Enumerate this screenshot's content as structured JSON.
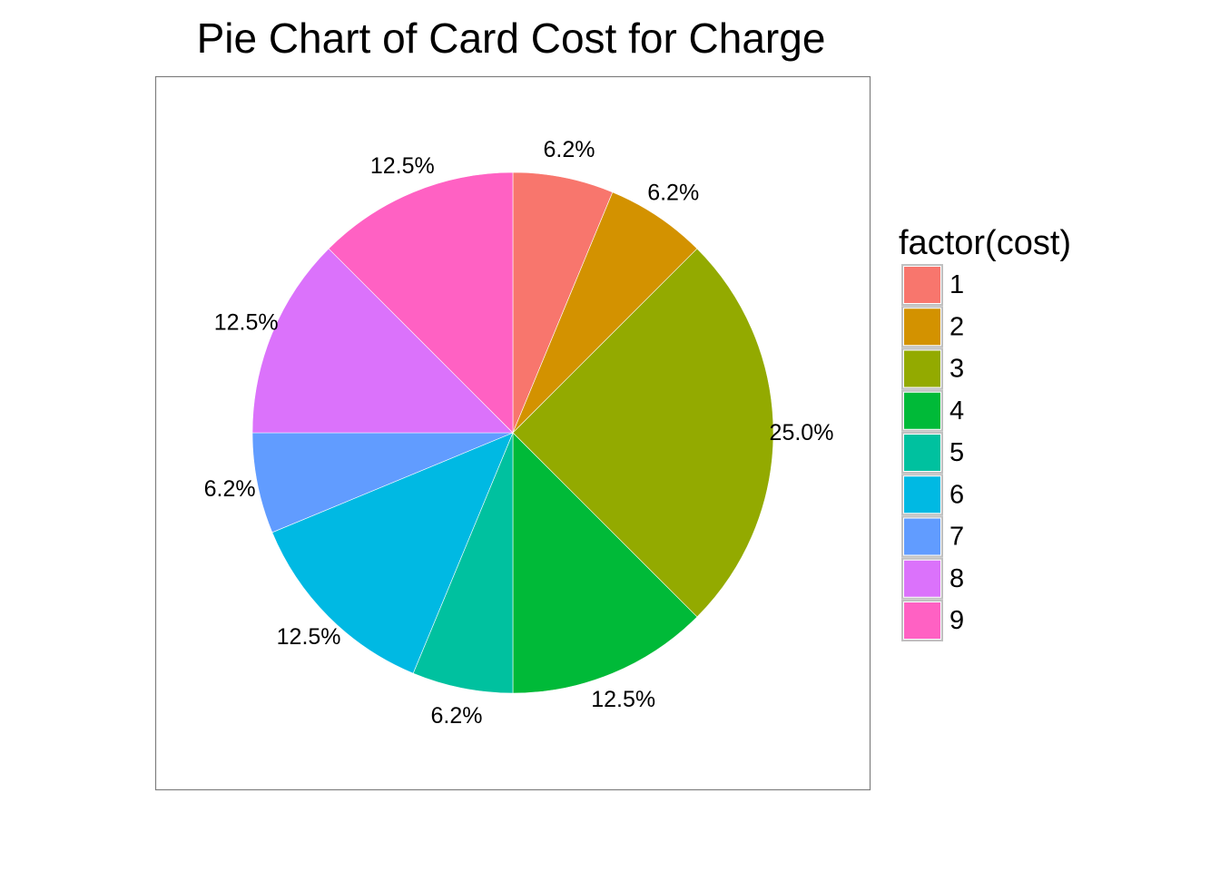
{
  "chart_data": {
    "type": "pie",
    "title": "Pie Chart of Card Cost for Charge",
    "legend": {
      "title": "factor(cost)",
      "placement": "right"
    },
    "start_angle": "12 o'clock",
    "direction": "clockwise",
    "slices": [
      {
        "category": "1",
        "value": 6.25,
        "label": "6.2%",
        "color": "#F8766D"
      },
      {
        "category": "2",
        "value": 6.25,
        "label": "6.2%",
        "color": "#D39200"
      },
      {
        "category": "3",
        "value": 25.0,
        "label": "25.0%",
        "color": "#93AA00"
      },
      {
        "category": "4",
        "value": 12.5,
        "label": "12.5%",
        "color": "#00BA38"
      },
      {
        "category": "5",
        "value": 6.25,
        "label": "6.2%",
        "color": "#00C19F"
      },
      {
        "category": "6",
        "value": 12.5,
        "label": "12.5%",
        "color": "#00B9E3"
      },
      {
        "category": "7",
        "value": 6.25,
        "label": "6.2%",
        "color": "#619CFF"
      },
      {
        "category": "8",
        "value": 12.5,
        "label": "12.5%",
        "color": "#DB72FB"
      },
      {
        "category": "9",
        "value": 12.5,
        "label": "12.5%",
        "color": "#FF61C3"
      }
    ],
    "panel_border_color": "#7f7f7f",
    "legend_key_border_color": "#c0c0c0"
  }
}
